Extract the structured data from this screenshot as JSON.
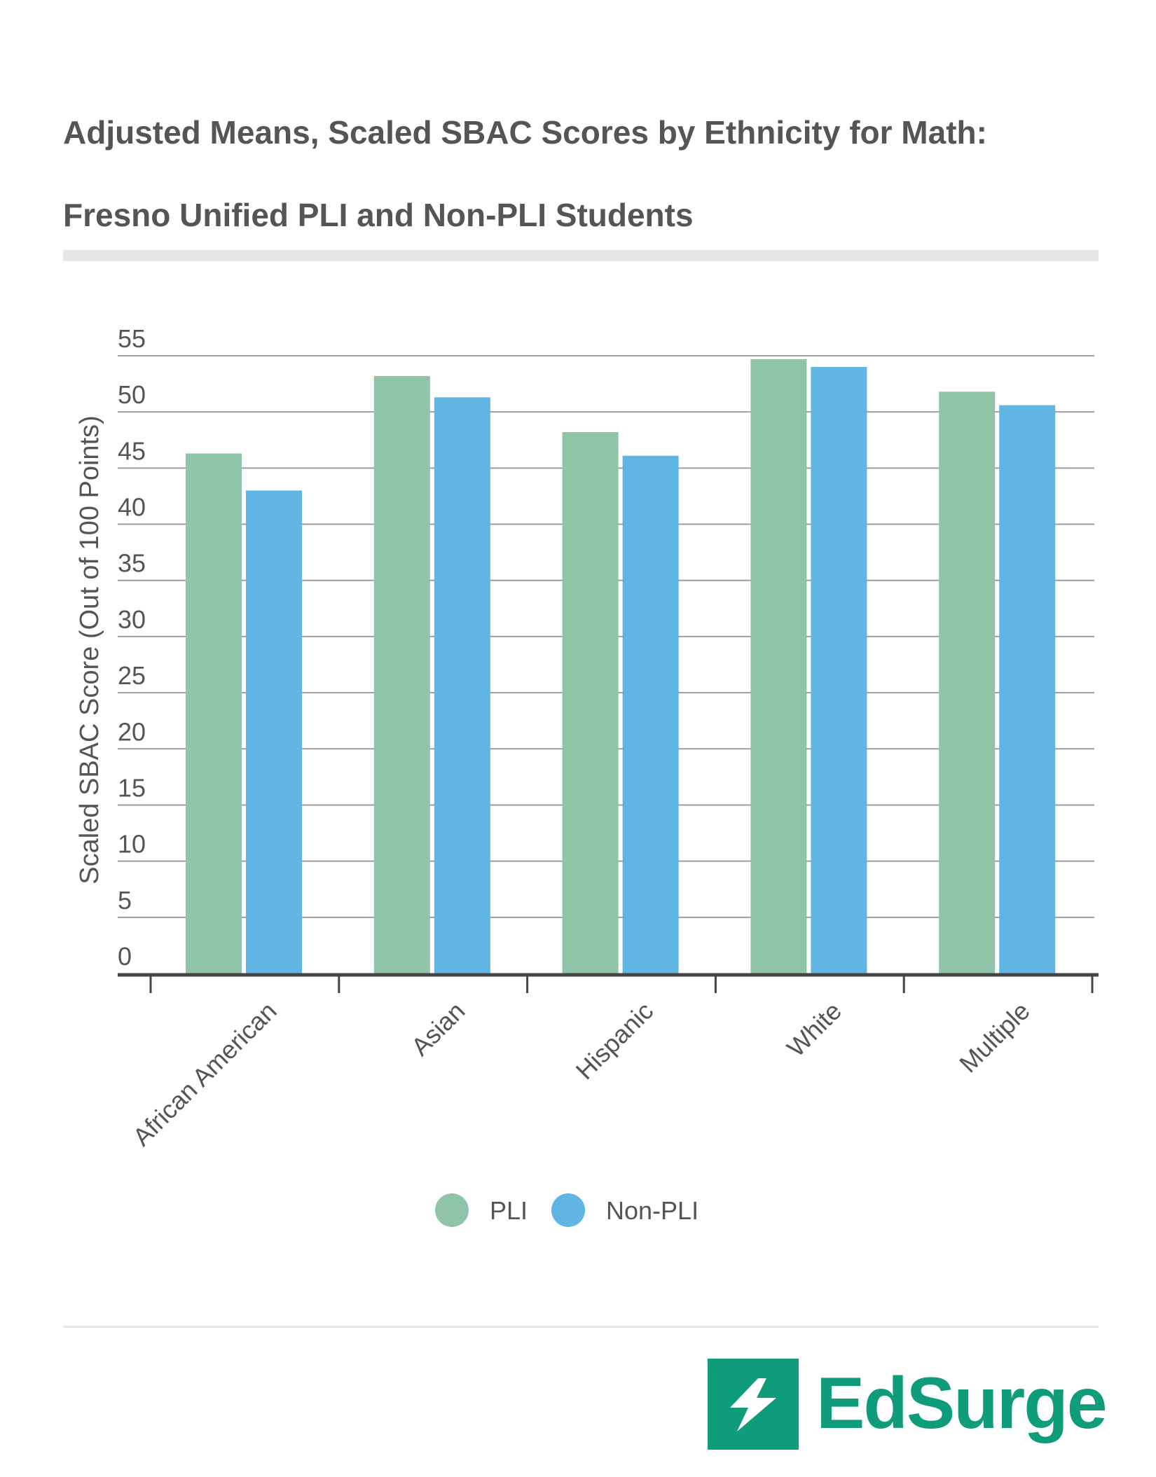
{
  "title": "Adjusted Means, Scaled SBAC Scores by Ethnicity for Math: Fresno Unified PLI and Non-PLI Students",
  "brand": {
    "name": "EdSurge",
    "color": "#0e9c7a"
  },
  "chart_data": {
    "type": "bar",
    "title": "Adjusted Means, Scaled SBAC Scores by Ethnicity for Math: Fresno Unified PLI and Non-PLI Students",
    "xlabel": "",
    "ylabel": "Scaled SBAC Score (Out of 100 Points)",
    "ylim": [
      0,
      55
    ],
    "yticks": [
      0,
      5,
      10,
      15,
      20,
      25,
      30,
      35,
      40,
      45,
      50,
      55
    ],
    "grid": true,
    "legend_position": "bottom",
    "categories": [
      "African American",
      "Asian",
      "Hispanic",
      "White",
      "Multiple"
    ],
    "series": [
      {
        "name": "PLI",
        "color": "#8fc4a8",
        "values": [
          46.3,
          53.2,
          48.2,
          54.7,
          51.8
        ]
      },
      {
        "name": "Non-PLI",
        "color": "#60b5e3",
        "values": [
          43.0,
          51.3,
          46.1,
          54.0,
          50.6
        ]
      }
    ]
  }
}
